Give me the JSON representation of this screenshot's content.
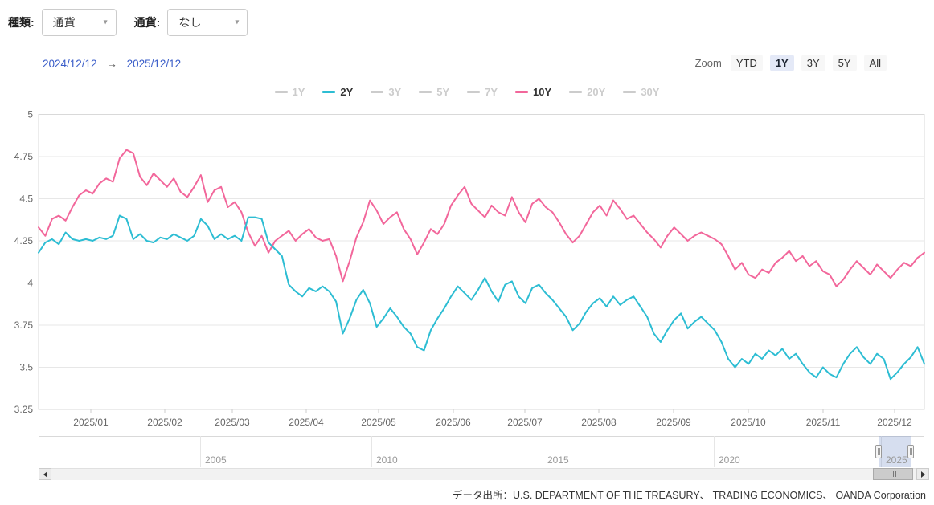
{
  "toolbar": {
    "type_label": "種類:",
    "type_value": "通貨",
    "currency_label": "通貨:",
    "currency_value": "なし",
    "caret_icon": "▾"
  },
  "date_range": {
    "start": "2024/12/12",
    "arrow": "→",
    "end": "2025/12/12"
  },
  "zoom_controls": {
    "label": "Zoom",
    "buttons": [
      "YTD",
      "1Y",
      "3Y",
      "5Y",
      "All"
    ],
    "selected": "1Y"
  },
  "legend": {
    "items": [
      {
        "label": "1Y",
        "active": false,
        "color": "#cccccc"
      },
      {
        "label": "2Y",
        "active": true,
        "color": "#2dbdd3"
      },
      {
        "label": "3Y",
        "active": false,
        "color": "#cccccc"
      },
      {
        "label": "5Y",
        "active": false,
        "color": "#cccccc"
      },
      {
        "label": "7Y",
        "active": false,
        "color": "#cccccc"
      },
      {
        "label": "10Y",
        "active": true,
        "color": "#f2679b"
      },
      {
        "label": "20Y",
        "active": false,
        "color": "#cccccc"
      },
      {
        "label": "30Y",
        "active": false,
        "color": "#cccccc"
      }
    ]
  },
  "chart_data": {
    "type": "line",
    "title": "",
    "xlabel": "",
    "ylabel": "",
    "x_range": [
      "2024/12/12",
      "2025/12/12"
    ],
    "ylim": [
      3.25,
      5
    ],
    "grid": true,
    "legend_position": "top",
    "yticks": [
      "5",
      "4.75",
      "4.5",
      "4.25",
      "4",
      "3.75",
      "3.5",
      "3.25"
    ],
    "ytick_values": [
      5,
      4.75,
      4.5,
      4.25,
      4,
      3.75,
      3.5,
      3.25
    ],
    "xticks": [
      "2025/01",
      "2025/02",
      "2025/03",
      "2025/04",
      "2025/05",
      "2025/06",
      "2025/07",
      "2025/08",
      "2025/09",
      "2025/10",
      "2025/11",
      "2025/12"
    ],
    "series": [
      {
        "name": "10Y",
        "color": "#f2679b",
        "values": [
          4.33,
          4.28,
          4.38,
          4.4,
          4.37,
          4.45,
          4.52,
          4.55,
          4.53,
          4.59,
          4.62,
          4.6,
          4.74,
          4.79,
          4.77,
          4.63,
          4.58,
          4.65,
          4.61,
          4.57,
          4.62,
          4.54,
          4.51,
          4.57,
          4.64,
          4.48,
          4.55,
          4.57,
          4.45,
          4.48,
          4.42,
          4.3,
          4.22,
          4.28,
          4.18,
          4.25,
          4.28,
          4.31,
          4.25,
          4.29,
          4.32,
          4.27,
          4.25,
          4.26,
          4.16,
          4.01,
          4.13,
          4.27,
          4.36,
          4.49,
          4.43,
          4.35,
          4.39,
          4.42,
          4.32,
          4.26,
          4.17,
          4.24,
          4.32,
          4.29,
          4.35,
          4.46,
          4.52,
          4.57,
          4.47,
          4.43,
          4.39,
          4.46,
          4.42,
          4.4,
          4.51,
          4.42,
          4.36,
          4.47,
          4.5,
          4.45,
          4.42,
          4.36,
          4.29,
          4.24,
          4.28,
          4.35,
          4.42,
          4.46,
          4.4,
          4.49,
          4.44,
          4.38,
          4.4,
          4.35,
          4.3,
          4.26,
          4.21,
          4.28,
          4.33,
          4.29,
          4.25,
          4.28,
          4.3,
          4.28,
          4.26,
          4.23,
          4.16,
          4.08,
          4.12,
          4.05,
          4.03,
          4.08,
          4.06,
          4.12,
          4.15,
          4.19,
          4.13,
          4.16,
          4.1,
          4.13,
          4.07,
          4.05,
          3.98,
          4.02,
          4.08,
          4.13,
          4.09,
          4.05,
          4.11,
          4.07,
          4.03,
          4.08,
          4.12,
          4.1,
          4.15,
          4.18
        ]
      },
      {
        "name": "2Y",
        "color": "#2dbdd3",
        "values": [
          4.18,
          4.24,
          4.26,
          4.23,
          4.3,
          4.26,
          4.25,
          4.26,
          4.25,
          4.27,
          4.26,
          4.28,
          4.4,
          4.38,
          4.26,
          4.29,
          4.25,
          4.24,
          4.27,
          4.26,
          4.29,
          4.27,
          4.25,
          4.28,
          4.38,
          4.34,
          4.26,
          4.29,
          4.26,
          4.28,
          4.25,
          4.39,
          4.39,
          4.38,
          4.24,
          4.2,
          4.16,
          3.99,
          3.95,
          3.92,
          3.97,
          3.95,
          3.98,
          3.95,
          3.89,
          3.7,
          3.79,
          3.9,
          3.96,
          3.88,
          3.74,
          3.79,
          3.85,
          3.8,
          3.74,
          3.7,
          3.62,
          3.6,
          3.72,
          3.79,
          3.85,
          3.92,
          3.98,
          3.94,
          3.9,
          3.96,
          4.03,
          3.95,
          3.89,
          3.99,
          4.01,
          3.92,
          3.88,
          3.97,
          3.99,
          3.94,
          3.9,
          3.85,
          3.8,
          3.72,
          3.76,
          3.83,
          3.88,
          3.91,
          3.86,
          3.92,
          3.87,
          3.9,
          3.92,
          3.86,
          3.8,
          3.7,
          3.65,
          3.72,
          3.78,
          3.82,
          3.73,
          3.77,
          3.8,
          3.76,
          3.72,
          3.65,
          3.55,
          3.5,
          3.55,
          3.52,
          3.58,
          3.55,
          3.6,
          3.57,
          3.61,
          3.55,
          3.58,
          3.52,
          3.47,
          3.44,
          3.5,
          3.46,
          3.44,
          3.52,
          3.58,
          3.62,
          3.56,
          3.52,
          3.58,
          3.55,
          3.43,
          3.47,
          3.52,
          3.56,
          3.62,
          3.52
        ]
      }
    ]
  },
  "navigator": {
    "years": [
      "2005",
      "2010",
      "2015",
      "2020",
      "2025"
    ]
  },
  "attribution": "データ出所：U.S. DEPARTMENT OF THE TREASURY、 TRADING ECONOMICS、 OANDA Corporation",
  "colors": {
    "link_blue": "#3a5dc9",
    "series_2y": "#2dbdd3",
    "series_10y": "#f2679b",
    "inactive_legend": "#cccccc",
    "grid": "#e7e7e7",
    "selection": "rgba(108,136,198,0.28)"
  }
}
